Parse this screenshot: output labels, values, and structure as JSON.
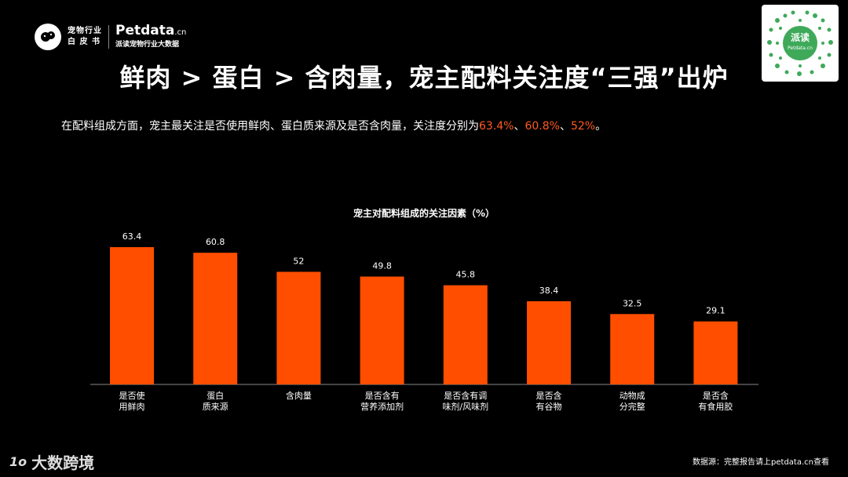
{
  "brand": {
    "cn_line1": "宠物行业",
    "cn_line2": "白 皮 书",
    "en_name": "Petdata",
    "en_suffix": ".cn",
    "tagline": "派读宠物行业大数据"
  },
  "qr": {
    "badge_text": "派读",
    "badge_sub": "Petdata.cn"
  },
  "title": "鲜肉 > 蛋白 > 含肉量，宠主配料关注度“三强”出炉",
  "subtitle": {
    "prefix": "在配料组成方面，宠主最关注是否使用鲜肉、蛋白质来源及是否含肉量，关注度分别为",
    "v1": "63.4%",
    "sep1": "、",
    "v2": "60.8%",
    "sep2": "、",
    "v3": "52%",
    "suffix": "。"
  },
  "chart_data": {
    "type": "bar",
    "title": "宠主对配料组成的关注因素（%）",
    "categories": [
      [
        "是否使",
        "用鲜肉"
      ],
      [
        "蛋白",
        "质来源"
      ],
      [
        "含肉量"
      ],
      [
        "是否含有",
        "营养添加剂"
      ],
      [
        "是否含有调",
        "味剂/风味剂"
      ],
      [
        "是否含",
        "有谷物"
      ],
      [
        "动物成",
        "分完整"
      ],
      [
        "是否含",
        "有食用胶"
      ]
    ],
    "values": [
      63.4,
      60.8,
      52,
      49.8,
      45.8,
      38.4,
      32.5,
      29.1
    ],
    "value_labels": [
      "63.4",
      "60.8",
      "52",
      "49.8",
      "45.8",
      "38.4",
      "32.5",
      "29.1"
    ],
    "bar_color": "#ff4e00",
    "ylim": [
      0,
      70
    ]
  },
  "footer": {
    "logo_mark": "1o",
    "logo_text": "大数跨境",
    "source": "数据源：完整报告请上petdata.cn查看"
  },
  "colors": {
    "accent": "#ff5a1f",
    "background": "#000000"
  }
}
